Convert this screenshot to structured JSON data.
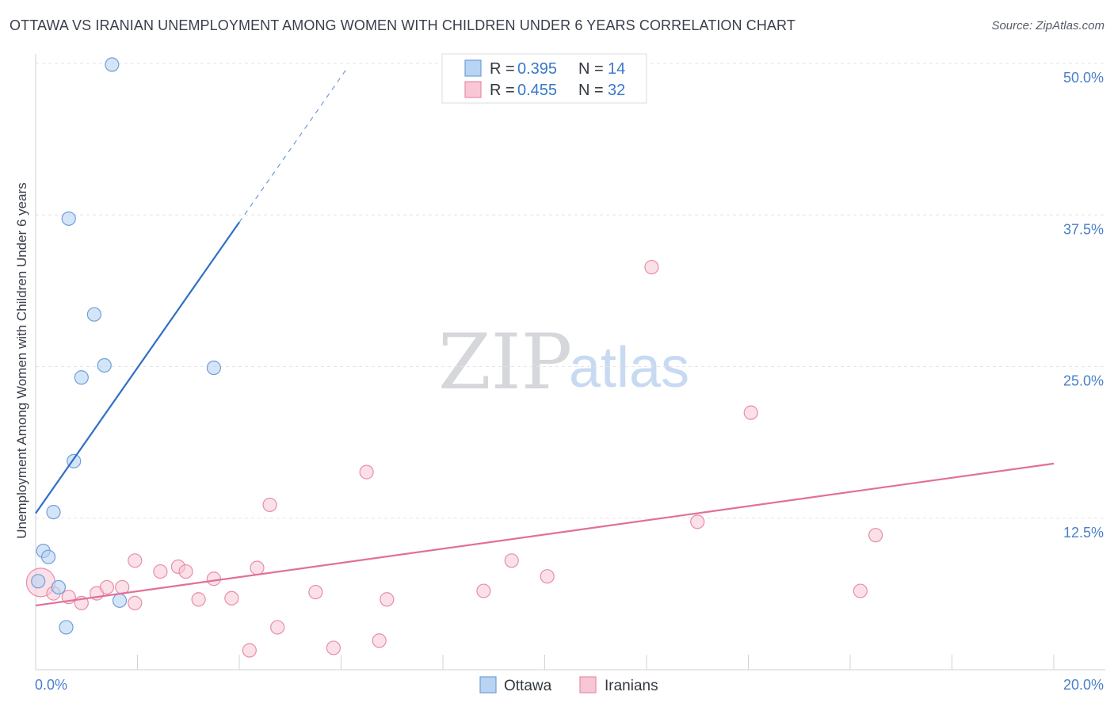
{
  "title": "OTTAWA VS IRANIAN UNEMPLOYMENT AMONG WOMEN WITH CHILDREN UNDER 6 YEARS CORRELATION CHART",
  "source": "Source: ZipAtlas.com",
  "watermark": {
    "zip": "ZIP",
    "atlas": "atlas"
  },
  "colors": {
    "ottawa_fill": "#b9d3f3",
    "ottawa_stroke": "#6f9fd8",
    "ottawa_line": "#2f6fc6",
    "iranians_fill": "#f8c6d4",
    "iranians_stroke": "#e68eaa",
    "iranians_line": "#e0709a",
    "tick_label": "#4a7fc9",
    "grid": "#e3e6ea"
  },
  "legend": {
    "rows": [
      {
        "r_label": "R = ",
        "r_value": "0.395",
        "n_label": "N = ",
        "n_value": "14"
      },
      {
        "r_label": "R = ",
        "r_value": "0.455",
        "n_label": "N = ",
        "n_value": "32"
      }
    ]
  },
  "chart_data": {
    "type": "scatter",
    "title": "OTTAWA VS IRANIAN UNEMPLOYMENT AMONG WOMEN WITH CHILDREN UNDER 6 YEARS CORRELATION CHART",
    "xlabel": "",
    "ylabel": "Unemployment Among Women with Children Under 6 years",
    "xlim": [
      0,
      20
    ],
    "ylim": [
      0,
      50
    ],
    "x_tick_labels": [
      "0.0%",
      "20.0%"
    ],
    "y_ticks": [
      12.5,
      25.0,
      37.5,
      50.0
    ],
    "y_tick_labels": [
      "12.5%",
      "25.0%",
      "37.5%",
      "50.0%"
    ],
    "grid": true,
    "legend_position": "top-center",
    "series": [
      {
        "name": "Ottawa",
        "r": 0.395,
        "n": 14,
        "points": [
          [
            0.05,
            7.3
          ],
          [
            0.15,
            9.8
          ],
          [
            0.25,
            9.3
          ],
          [
            0.35,
            13.0
          ],
          [
            0.45,
            6.8
          ],
          [
            0.6,
            3.5
          ],
          [
            0.65,
            37.2
          ],
          [
            0.75,
            17.2
          ],
          [
            0.9,
            24.1
          ],
          [
            1.15,
            29.3
          ],
          [
            1.35,
            25.1
          ],
          [
            1.5,
            49.9
          ],
          [
            1.65,
            5.7
          ],
          [
            3.5,
            24.9
          ]
        ],
        "trend": {
          "x0": 0.0,
          "y0": 12.9,
          "x1": 4.0,
          "y1": 36.9,
          "dash_to_x": 6.1,
          "dash_to_y": 49.5
        }
      },
      {
        "name": "Iranians",
        "r": 0.455,
        "n": 32,
        "points": [
          [
            0.1,
            7.2
          ],
          [
            0.35,
            6.3
          ],
          [
            0.65,
            6.0
          ],
          [
            0.9,
            5.5
          ],
          [
            1.2,
            6.3
          ],
          [
            1.4,
            6.8
          ],
          [
            1.7,
            6.8
          ],
          [
            1.95,
            5.5
          ],
          [
            1.95,
            9.0
          ],
          [
            2.45,
            8.1
          ],
          [
            2.8,
            8.5
          ],
          [
            2.95,
            8.1
          ],
          [
            3.2,
            5.8
          ],
          [
            3.5,
            7.5
          ],
          [
            3.85,
            5.9
          ],
          [
            4.2,
            1.6
          ],
          [
            4.35,
            8.4
          ],
          [
            4.6,
            13.6
          ],
          [
            4.75,
            3.5
          ],
          [
            5.5,
            6.4
          ],
          [
            5.85,
            1.8
          ],
          [
            6.5,
            16.3
          ],
          [
            6.75,
            2.4
          ],
          [
            6.9,
            5.8
          ],
          [
            8.8,
            6.5
          ],
          [
            9.35,
            9.0
          ],
          [
            10.05,
            7.7
          ],
          [
            12.1,
            33.2
          ],
          [
            13.0,
            12.2
          ],
          [
            14.05,
            21.2
          ],
          [
            16.2,
            6.5
          ],
          [
            16.5,
            11.1
          ]
        ],
        "trend": {
          "x0": 0.0,
          "y0": 5.3,
          "x1": 20.0,
          "y1": 17.0
        }
      }
    ]
  },
  "bottom_legend": [
    {
      "label": "Ottawa"
    },
    {
      "label": "Iranians"
    }
  ]
}
